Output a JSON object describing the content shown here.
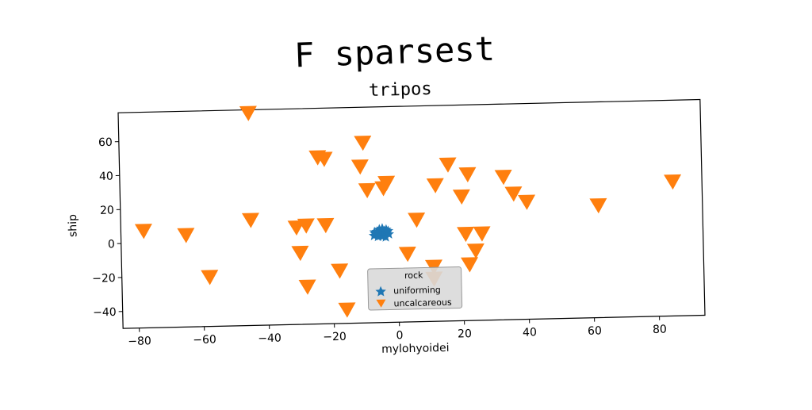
{
  "chart_data": {
    "type": "scatter",
    "title": "F sparsest",
    "subtitle": "tripos",
    "xlabel": "mylohyoidei",
    "ylabel": "ship",
    "xlim": [
      -85,
      94
    ],
    "ylim": [
      -50,
      77
    ],
    "xticks": [
      -80,
      -60,
      -40,
      -20,
      0,
      20,
      40,
      60,
      80
    ],
    "yticks": [
      -40,
      -20,
      0,
      20,
      40,
      60
    ],
    "grid": false,
    "legend": {
      "title": "rock",
      "placement": "lower-center"
    },
    "series": [
      {
        "name": "uniforming",
        "marker": "star",
        "color": "#1f77b4",
        "points": [
          [
            -5.0,
            2.5
          ],
          [
            -4.2,
            3.2
          ],
          [
            -5.8,
            1.8
          ],
          [
            -3.8,
            1.5
          ],
          [
            -6.2,
            3.6
          ],
          [
            -4.8,
            4.2
          ],
          [
            -3.2,
            2.8
          ],
          [
            -6.8,
            2.2
          ],
          [
            -4.5,
            0.8
          ],
          [
            -5.5,
            4.8
          ],
          [
            -2.8,
            3.8
          ],
          [
            -7.2,
            1.2
          ],
          [
            -3.6,
            0.2
          ],
          [
            -5.2,
            1.2
          ],
          [
            -4.0,
            3.9
          ],
          [
            -6.0,
            0.6
          ],
          [
            -2.6,
            1.9
          ],
          [
            -7.0,
            3.3
          ],
          [
            -4.6,
            5.3
          ],
          [
            -3.4,
            4.6
          ]
        ]
      },
      {
        "name": "uncalcareous",
        "marker": "triangle_down",
        "color": "#ff7f0e",
        "points": [
          [
            -45,
            75
          ],
          [
            -10,
            56
          ],
          [
            -24,
            48
          ],
          [
            -22,
            47
          ],
          [
            -11,
            42
          ],
          [
            16,
            42
          ],
          [
            22,
            36
          ],
          [
            -9,
            28
          ],
          [
            -4,
            29
          ],
          [
            -3,
            32
          ],
          [
            12,
            30
          ],
          [
            33,
            34
          ],
          [
            36,
            24
          ],
          [
            20,
            23
          ],
          [
            40,
            19
          ],
          [
            62,
            16
          ],
          [
            85,
            29
          ],
          [
            -78,
            7
          ],
          [
            -65,
            4
          ],
          [
            -45,
            12
          ],
          [
            -31,
            7
          ],
          [
            -28,
            8
          ],
          [
            -22,
            8
          ],
          [
            6,
            10
          ],
          [
            -30,
            -8
          ],
          [
            -58,
            -21
          ],
          [
            -28,
            -28
          ],
          [
            -18,
            -19
          ],
          [
            3,
            -10
          ],
          [
            11,
            -18
          ],
          [
            11,
            -25
          ],
          [
            21,
            1
          ],
          [
            26,
            1
          ],
          [
            24,
            -9
          ],
          [
            22,
            -17
          ],
          [
            -16,
            -42
          ]
        ]
      }
    ]
  }
}
